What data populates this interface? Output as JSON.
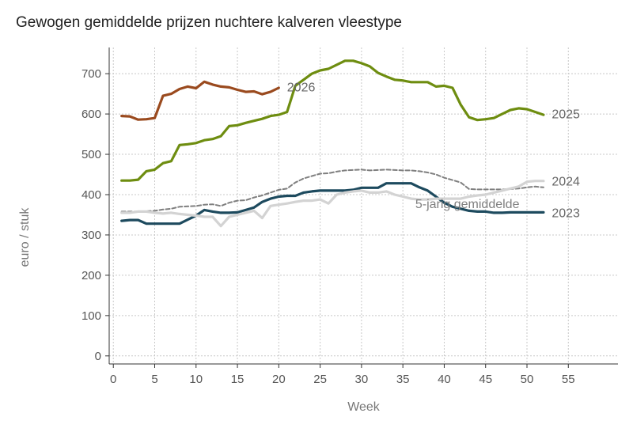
{
  "chart_data": {
    "type": "line",
    "title": "Gewogen gemiddelde prijzen nuchtere kalveren vleestype",
    "xlabel": "Week",
    "ylabel": "euro / stuk",
    "xlim": [
      -0.5,
      61
    ],
    "ylim": [
      -20,
      765
    ],
    "x_ticks": [
      0,
      5,
      10,
      15,
      20,
      25,
      30,
      35,
      40,
      45,
      50,
      55
    ],
    "y_ticks": [
      0,
      100,
      200,
      300,
      400,
      500,
      600,
      700
    ],
    "grid": true,
    "legend": "none",
    "series": [
      {
        "name": "5-jarig gemiddelde",
        "color": "#7f7f7f",
        "dash": "dashed",
        "label_x": 36.5,
        "label_y": 378,
        "x": [
          1,
          2,
          3,
          4,
          5,
          6,
          7,
          8,
          9,
          10,
          11,
          12,
          13,
          14,
          15,
          16,
          17,
          18,
          19,
          20,
          21,
          22,
          23,
          24,
          25,
          26,
          27,
          28,
          29,
          30,
          31,
          32,
          33,
          34,
          35,
          36,
          37,
          38,
          39,
          40,
          41,
          42,
          43,
          44,
          45,
          46,
          47,
          48,
          49,
          50,
          51,
          52
        ],
        "y": [
          358,
          358,
          358,
          359,
          360,
          363,
          365,
          370,
          371,
          372,
          375,
          376,
          372,
          380,
          385,
          386,
          393,
          398,
          405,
          412,
          415,
          430,
          440,
          446,
          452,
          453,
          457,
          460,
          461,
          462,
          460,
          461,
          462,
          461,
          460,
          460,
          458,
          455,
          450,
          442,
          436,
          430,
          414,
          413,
          413,
          413,
          413,
          414,
          415,
          418,
          420,
          418
        ]
      },
      {
        "name": "2023",
        "color": "#1d4a5e",
        "dash": "solid",
        "label_x": 53,
        "label_y": 356,
        "x": [
          1,
          2,
          3,
          4,
          5,
          6,
          7,
          8,
          9,
          10,
          11,
          12,
          13,
          14,
          15,
          16,
          17,
          18,
          19,
          20,
          21,
          22,
          23,
          24,
          25,
          26,
          27,
          28,
          29,
          30,
          31,
          32,
          33,
          34,
          35,
          36,
          37,
          38,
          39,
          40,
          41,
          42,
          43,
          44,
          45,
          46,
          47,
          48,
          49,
          50,
          51,
          52
        ],
        "y": [
          335,
          337,
          337,
          328,
          328,
          328,
          328,
          328,
          338,
          348,
          362,
          358,
          355,
          355,
          356,
          362,
          368,
          382,
          390,
          395,
          397,
          397,
          405,
          408,
          410,
          410,
          410,
          410,
          412,
          417,
          417,
          417,
          428,
          428,
          428,
          428,
          418,
          410,
          395,
          380,
          370,
          365,
          360,
          358,
          358,
          355,
          355,
          356,
          356,
          356,
          356,
          356
        ]
      },
      {
        "name": "2024",
        "color": "#d3d3d3",
        "dash": "solid",
        "label_x": 53,
        "label_y": 434,
        "x": [
          1,
          2,
          3,
          4,
          5,
          6,
          7,
          8,
          9,
          10,
          11,
          12,
          13,
          14,
          15,
          16,
          17,
          18,
          19,
          20,
          21,
          22,
          23,
          24,
          25,
          26,
          27,
          28,
          29,
          30,
          31,
          32,
          33,
          34,
          35,
          36,
          37,
          38,
          39,
          40,
          41,
          42,
          43,
          44,
          45,
          46,
          47,
          48,
          49,
          50,
          51,
          52
        ],
        "y": [
          355,
          355,
          358,
          358,
          355,
          353,
          355,
          352,
          350,
          348,
          345,
          345,
          322,
          345,
          350,
          355,
          360,
          342,
          372,
          375,
          378,
          382,
          385,
          385,
          388,
          378,
          400,
          405,
          408,
          410,
          405,
          405,
          408,
          400,
          395,
          390,
          388,
          388,
          390,
          390,
          390,
          390,
          395,
          398,
          400,
          405,
          410,
          415,
          420,
          432,
          434,
          434
        ]
      },
      {
        "name": "2025",
        "color": "#6e8d10",
        "dash": "solid",
        "label_x": 53,
        "label_y": 601,
        "x": [
          1,
          2,
          3,
          4,
          5,
          6,
          7,
          8,
          9,
          10,
          11,
          12,
          13,
          14,
          15,
          16,
          17,
          18,
          19,
          20,
          21,
          22,
          23,
          24,
          25,
          26,
          27,
          28,
          29,
          30,
          31,
          32,
          33,
          34,
          35,
          36,
          37,
          38,
          39,
          40,
          41,
          42,
          43,
          44,
          45,
          46,
          47,
          48,
          49,
          50,
          51,
          52
        ],
        "y": [
          435,
          435,
          437,
          458,
          462,
          478,
          483,
          523,
          525,
          528,
          535,
          538,
          545,
          570,
          572,
          578,
          583,
          588,
          595,
          598,
          605,
          670,
          685,
          700,
          708,
          712,
          722,
          732,
          732,
          726,
          718,
          702,
          693,
          685,
          683,
          679,
          679,
          679,
          668,
          670,
          665,
          623,
          592,
          585,
          587,
          590,
          600,
          610,
          614,
          612,
          605,
          598
        ]
      },
      {
        "name": "2026",
        "color": "#9a4a1e",
        "dash": "solid",
        "label_x": 21,
        "label_y": 668,
        "x": [
          1,
          2,
          3,
          4,
          5,
          6,
          7,
          8,
          9,
          10,
          11,
          12,
          13,
          14,
          15,
          16,
          17,
          18,
          19,
          20
        ],
        "y": [
          595,
          594,
          586,
          587,
          590,
          645,
          650,
          662,
          668,
          664,
          680,
          673,
          668,
          666,
          660,
          655,
          656,
          649,
          655,
          665
        ]
      }
    ]
  }
}
